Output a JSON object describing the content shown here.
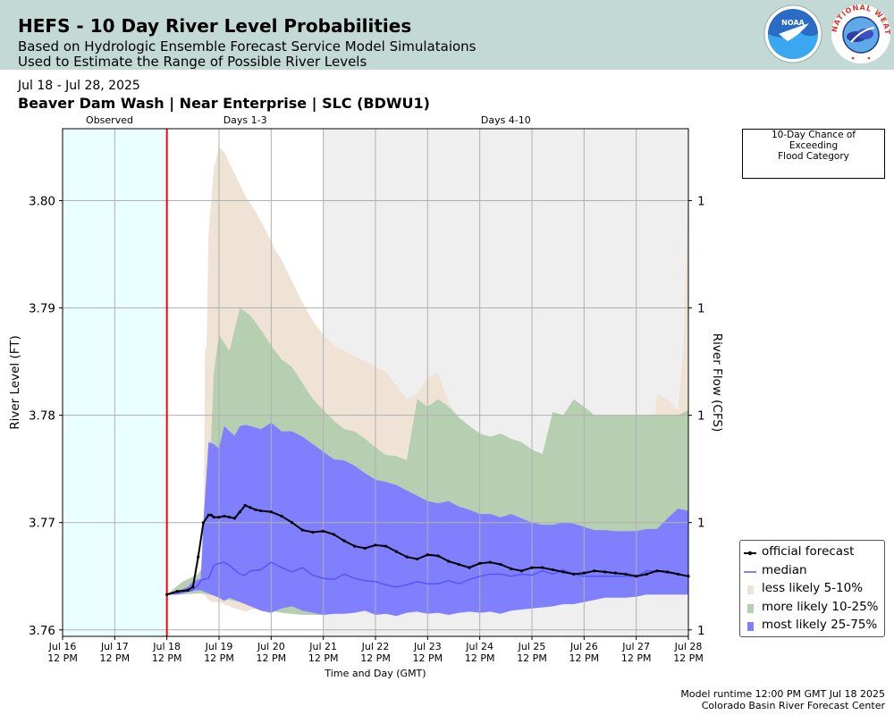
{
  "header": {
    "title": "HEFS - 10 Day River Level Probabilities",
    "subtitle_1": "Based on Hydrologic Ensemble Forecast Service Model Simulataions",
    "subtitle_2": "Used to Estimate the Range of Possible River Levels",
    "bg_color": "#c3d9d6"
  },
  "logos": {
    "noaa_text": "NOAA",
    "nws_text": "NATIONAL WEATHER SERVICE"
  },
  "date_range": "Jul 18 - Jul 28, 2025",
  "location": "Beaver Dam Wash | Near Enterprise | SLC (BDWU1)",
  "flood_box": {
    "line1": "10-Day Chance of",
    "line2": "Exceeding",
    "line3": "Flood Category"
  },
  "footer": {
    "runtime": "Model runtime 12:00 PM GMT Jul 18 2025",
    "center": "Colorado Basin River Forecast Center"
  },
  "chart_data": {
    "type": "area",
    "xlabel": "Time and Day (GMT)",
    "ylabel": "River Level (FT)",
    "ylabel_right": "River Flow (CFS)",
    "x_unit_start": "Jul 16 12 PM",
    "x_ticks": [
      "Jul 16",
      "Jul 17",
      "Jul 18",
      "Jul 19",
      "Jul 20",
      "Jul 21",
      "Jul 22",
      "Jul 23",
      "Jul 24",
      "Jul 25",
      "Jul 26",
      "Jul 27",
      "Jul 28"
    ],
    "x_tick_time": "12 PM",
    "ylim": [
      3.7594,
      3.8067
    ],
    "y_ticks": [
      "3.76",
      "3.77",
      "3.78",
      "3.79",
      "3.80"
    ],
    "y_tick_values": [
      3.76,
      3.77,
      3.78,
      3.79,
      3.8
    ],
    "y_ticks_right": [
      "1",
      "1",
      "1",
      "1",
      "1"
    ],
    "grid": true,
    "legend_position": "bottom-right",
    "period_labels": [
      {
        "label": "Observed",
        "x": "Jul 17 0 AM"
      },
      {
        "label": "Days 1-3",
        "x": "Jul 19 12 PM"
      },
      {
        "label": "Days 4-10",
        "x": "Jul 24 12 PM"
      }
    ],
    "regions": {
      "observed": {
        "from": "Jul 16 12 PM",
        "to": "Jul 18 12 PM",
        "color": "#eaffff"
      },
      "days_4_10": {
        "from": "Jul 21 12 PM",
        "to": "Jul 28 12 PM",
        "color": "#efefef"
      },
      "forecast_start": {
        "at": "Jul 18 12 PM",
        "color": "#ff0000"
      }
    },
    "legend": [
      {
        "name": "official forecast",
        "color": "#000000",
        "kind": "line-marker"
      },
      {
        "name": "median",
        "color": "#5555ff",
        "kind": "line"
      },
      {
        "name": "less likely 5-10%",
        "color": "#efe3d6",
        "kind": "patch"
      },
      {
        "name": "more likely 10-25%",
        "color": "#b6cfb0",
        "kind": "patch"
      },
      {
        "name": "most likely 25-75%",
        "color": "#8080ff",
        "kind": "patch"
      }
    ],
    "series": [
      {
        "name": "less likely 5-10%",
        "kind": "band",
        "x": [
          0.0,
          0.2,
          0.4,
          0.6,
          0.7,
          0.73,
          0.76,
          0.8,
          0.85,
          0.9,
          1.0,
          1.1,
          1.3,
          1.5,
          1.7,
          1.9,
          2.1,
          2.2,
          2.3,
          2.4,
          2.6,
          2.8,
          2.95,
          3.0,
          3.2,
          3.4,
          3.6,
          3.8,
          4.0,
          4.2,
          4.4,
          4.6,
          4.8,
          5.0,
          5.2,
          5.3,
          5.4,
          5.6,
          5.8,
          6.0,
          6.3,
          6.6,
          6.9,
          7.0,
          7.2,
          7.35,
          7.4,
          7.5,
          7.7,
          7.8,
          7.9,
          8.0,
          8.3,
          8.6,
          8.9,
          9.0,
          9.2,
          9.4,
          9.6,
          9.8,
          9.9,
          10.0
        ],
        "upper": [
          3.7633,
          3.7638,
          3.7645,
          3.765,
          3.7655,
          3.7865,
          3.786,
          3.797,
          3.8,
          3.803,
          3.805,
          3.8045,
          3.8025,
          3.8005,
          3.799,
          3.7972,
          3.7952,
          3.7945,
          3.7935,
          3.7925,
          3.7905,
          3.7888,
          3.7878,
          3.7875,
          3.7865,
          3.786,
          3.7855,
          3.785,
          3.7845,
          3.784,
          3.7828,
          3.7815,
          3.782,
          3.7835,
          3.784,
          3.7825,
          3.7812,
          3.7798,
          3.7785,
          3.777,
          3.7765,
          3.776,
          3.7755,
          3.7755,
          3.7748,
          3.775,
          3.7745,
          3.774,
          3.7735,
          3.773,
          3.7728,
          3.774,
          3.7735,
          3.772,
          3.771,
          3.7715,
          3.7715,
          3.782,
          3.7815,
          3.7805,
          3.786,
          3.8015
        ],
        "lower": [
          3.7633,
          3.7633,
          3.7635,
          3.7636,
          3.7633,
          3.7632,
          3.763,
          3.7628,
          3.7626,
          3.7626,
          3.7626,
          3.7624,
          3.762,
          3.7617,
          3.762,
          3.7625,
          3.762,
          3.7618,
          3.7616,
          3.7616,
          3.7615,
          3.7614,
          3.7614,
          3.7616,
          3.7618,
          3.762,
          3.7618,
          3.7616,
          3.7616,
          3.762,
          3.7621,
          3.762,
          3.7618,
          3.762,
          3.762,
          3.762,
          3.762,
          3.762,
          3.762,
          3.7622,
          3.7624,
          3.7626,
          3.7626,
          3.7626,
          3.7628,
          3.763,
          3.763,
          3.763,
          3.7632,
          3.7634,
          3.7636,
          3.7636,
          3.7636,
          3.7634,
          3.7634,
          3.7634,
          3.7634,
          3.7634,
          3.7634,
          3.7634,
          3.7633,
          3.7633
        ]
      },
      {
        "name": "more likely 10-25%",
        "kind": "band",
        "x": [
          0.0,
          0.3,
          0.6,
          0.7,
          0.8,
          0.9,
          1.0,
          1.2,
          1.4,
          1.6,
          1.8,
          2.0,
          2.2,
          2.4,
          2.6,
          2.8,
          3.0,
          3.2,
          3.4,
          3.6,
          3.8,
          4.0,
          4.2,
          4.4,
          4.6,
          4.8,
          5.0,
          5.2,
          5.4,
          5.6,
          5.8,
          6.0,
          6.2,
          6.4,
          6.6,
          6.8,
          7.0,
          7.2,
          7.4,
          7.6,
          7.8,
          8.0,
          8.2,
          8.4,
          8.6,
          8.8,
          9.0,
          9.2,
          9.4,
          9.6,
          9.8,
          10.0
        ],
        "upper": [
          3.7633,
          3.7645,
          3.7652,
          3.766,
          3.772,
          3.784,
          3.7875,
          3.786,
          3.79,
          3.7893,
          3.788,
          3.7865,
          3.7852,
          3.7845,
          3.783,
          3.7815,
          3.7805,
          3.7795,
          3.7787,
          3.7785,
          3.7778,
          3.777,
          3.7763,
          3.7762,
          3.7758,
          3.7815,
          3.7808,
          3.7815,
          3.7808,
          3.7798,
          3.779,
          3.7783,
          3.778,
          3.7783,
          3.7778,
          3.7775,
          3.7768,
          3.7764,
          3.7803,
          3.78,
          3.7815,
          3.7808,
          3.78,
          3.78,
          3.78,
          3.78,
          3.78,
          3.78,
          3.78,
          3.78,
          3.78,
          3.7805
        ],
        "lower": [
          3.7633,
          3.7633,
          3.7634,
          3.7634,
          3.7633,
          3.7632,
          3.763,
          3.7628,
          3.7626,
          3.7624,
          3.762,
          3.7618,
          3.7616,
          3.7615,
          3.7614,
          3.7614,
          3.7614,
          3.7615,
          3.7616,
          3.7617,
          3.7618,
          3.7618,
          3.7618,
          3.7618,
          3.7618,
          3.762,
          3.7622,
          3.7624,
          3.7626,
          3.7628,
          3.763,
          3.763,
          3.763,
          3.7632,
          3.7634,
          3.7634,
          3.7634,
          3.7634,
          3.7634,
          3.7634,
          3.7634,
          3.7634,
          3.7634,
          3.7634,
          3.7634,
          3.7634,
          3.7634,
          3.7634,
          3.7634,
          3.7634,
          3.7634,
          3.7633
        ]
      },
      {
        "name": "most likely 25-75%",
        "kind": "band",
        "x": [
          0.0,
          0.2,
          0.4,
          0.5,
          0.6,
          0.65,
          0.7,
          0.8,
          0.9,
          1.0,
          1.1,
          1.2,
          1.3,
          1.4,
          1.5,
          1.6,
          1.8,
          2.0,
          2.2,
          2.4,
          2.6,
          2.8,
          3.0,
          3.2,
          3.4,
          3.6,
          3.8,
          4.0,
          4.2,
          4.4,
          4.6,
          4.8,
          5.0,
          5.2,
          5.4,
          5.6,
          5.8,
          6.0,
          6.2,
          6.4,
          6.6,
          6.8,
          7.0,
          7.2,
          7.4,
          7.6,
          7.8,
          8.0,
          8.2,
          8.4,
          8.6,
          8.8,
          9.0,
          9.2,
          9.4,
          9.6,
          9.8,
          10.0
        ],
        "upper": [
          3.7633,
          3.7636,
          3.764,
          3.7645,
          3.7647,
          3.7648,
          3.77,
          3.7775,
          3.7773,
          3.7769,
          3.779,
          3.7785,
          3.7781,
          3.779,
          3.7791,
          3.779,
          3.7787,
          3.7793,
          3.7785,
          3.7785,
          3.778,
          3.7773,
          3.7766,
          3.7759,
          3.7758,
          3.7753,
          3.7746,
          3.774,
          3.7738,
          3.7735,
          3.773,
          3.7725,
          3.772,
          3.7718,
          3.772,
          3.7715,
          3.7712,
          3.7708,
          3.7708,
          3.7705,
          3.7708,
          3.7704,
          3.77,
          3.7698,
          3.7698,
          3.77,
          3.7699,
          3.7696,
          3.7693,
          3.7693,
          3.7692,
          3.7692,
          3.7692,
          3.7694,
          3.7694,
          3.7704,
          3.7713,
          3.7711
        ],
        "lower": [
          3.7633,
          3.7633,
          3.7636,
          3.7637,
          3.7637,
          3.7637,
          3.7636,
          3.7634,
          3.7632,
          3.763,
          3.7627,
          3.763,
          3.7628,
          3.7626,
          3.7624,
          3.7622,
          3.7618,
          3.7616,
          3.762,
          3.7622,
          3.7618,
          3.7616,
          3.7614,
          3.7615,
          3.7615,
          3.7616,
          3.7618,
          3.7614,
          3.7615,
          3.7613,
          3.7616,
          3.7617,
          3.7615,
          3.7616,
          3.7614,
          3.7616,
          3.7617,
          3.7616,
          3.7617,
          3.7615,
          3.7618,
          3.7619,
          3.762,
          3.7621,
          3.7622,
          3.7624,
          3.7624,
          3.7626,
          3.7628,
          3.763,
          3.763,
          3.763,
          3.7631,
          3.7633,
          3.7633,
          3.7633,
          3.7633,
          3.7633
        ]
      },
      {
        "name": "median",
        "kind": "line",
        "x": [
          0.0,
          0.3,
          0.5,
          0.6,
          0.65,
          0.7,
          0.8,
          0.9,
          1.0,
          1.1,
          1.2,
          1.3,
          1.4,
          1.5,
          1.6,
          1.8,
          2.0,
          2.2,
          2.4,
          2.6,
          2.8,
          3.0,
          3.2,
          3.4,
          3.6,
          3.8,
          4.0,
          4.2,
          4.4,
          4.6,
          4.8,
          5.0,
          5.2,
          5.4,
          5.6,
          5.8,
          6.0,
          6.2,
          6.4,
          6.6,
          6.8,
          7.0,
          7.2,
          7.4,
          7.6,
          7.8,
          8.0,
          8.2,
          8.4,
          8.6,
          8.8,
          9.0,
          9.2,
          9.4,
          9.6,
          9.8,
          10.0
        ],
        "values": [
          3.7633,
          3.7635,
          3.7637,
          3.7642,
          3.7646,
          3.7647,
          3.7648,
          3.766,
          3.7662,
          3.7663,
          3.766,
          3.7656,
          3.7652,
          3.7651,
          3.7655,
          3.7656,
          3.7663,
          3.7658,
          3.7654,
          3.7658,
          3.7651,
          3.7648,
          3.7647,
          3.7652,
          3.7648,
          3.7646,
          3.7645,
          3.7642,
          3.764,
          3.7642,
          3.7645,
          3.7643,
          3.7643,
          3.7646,
          3.7643,
          3.7647,
          3.765,
          3.7652,
          3.7652,
          3.765,
          3.7652,
          3.7651,
          3.7655,
          3.7652,
          3.7656,
          3.7652,
          3.765,
          3.765,
          3.765,
          3.765,
          3.765,
          3.765,
          3.7655,
          3.7655,
          3.7653,
          3.7652,
          3.765
        ]
      },
      {
        "name": "official forecast",
        "kind": "line",
        "x": [
          0.0,
          0.2,
          0.4,
          0.5,
          0.6,
          0.7,
          0.8,
          0.85,
          0.9,
          1.0,
          1.1,
          1.2,
          1.3,
          1.4,
          1.5,
          1.6,
          1.7,
          1.8,
          2.0,
          2.2,
          2.4,
          2.6,
          2.8,
          3.0,
          3.2,
          3.4,
          3.6,
          3.8,
          4.0,
          4.2,
          4.4,
          4.6,
          4.8,
          5.0,
          5.2,
          5.4,
          5.6,
          5.8,
          6.0,
          6.2,
          6.4,
          6.6,
          6.8,
          7.0,
          7.2,
          7.4,
          7.6,
          7.8,
          8.0,
          8.2,
          8.4,
          8.6,
          8.8,
          9.0,
          9.2,
          9.4,
          9.6,
          9.8,
          10.0
        ],
        "values": [
          3.7633,
          3.7636,
          3.7637,
          3.764,
          3.7668,
          3.77,
          3.7707,
          3.7707,
          3.7705,
          3.7705,
          3.7706,
          3.7705,
          3.7704,
          3.771,
          3.7716,
          3.7714,
          3.7712,
          3.7711,
          3.771,
          3.7706,
          3.77,
          3.7693,
          3.7691,
          3.7692,
          3.7689,
          3.7683,
          3.7678,
          3.7676,
          3.7679,
          3.7678,
          3.7673,
          3.7668,
          3.7666,
          3.767,
          3.7669,
          3.7664,
          3.7661,
          3.7658,
          3.7662,
          3.7663,
          3.7661,
          3.7657,
          3.7655,
          3.7658,
          3.7658,
          3.7656,
          3.7654,
          3.7652,
          3.7653,
          3.7655,
          3.7654,
          3.7653,
          3.7652,
          3.765,
          3.7652,
          3.7655,
          3.7654,
          3.7652,
          3.765
        ]
      }
    ]
  }
}
